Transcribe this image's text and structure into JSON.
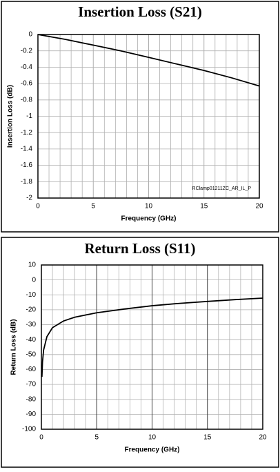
{
  "chart_data": [
    {
      "type": "line",
      "title": "Insertion Loss (S21)",
      "x_label": "Frequency (GHz)",
      "y_label": "Insertion Loss (dB)",
      "annotation": "RClamp01211ZC_AR_IL_P",
      "xlim": [
        0,
        20
      ],
      "ylim": [
        -2,
        0
      ],
      "xticks": [
        0,
        5,
        10,
        15,
        20
      ],
      "xminorticks": [
        1,
        2,
        3,
        4,
        6,
        7,
        8,
        9,
        11,
        12,
        13,
        14,
        16,
        17,
        18,
        19
      ],
      "yticks": [
        0,
        -0.2,
        -0.4,
        -0.6,
        -0.8,
        -1,
        -1.2,
        -1.4,
        -1.6,
        -1.8,
        -2
      ],
      "grid": true,
      "grid_color": "#b0b0b0",
      "major_grid_color": "#b0b0b0",
      "x": [
        0,
        2.5,
        5,
        7.5,
        10,
        12.5,
        15,
        17.5,
        20
      ],
      "series": [
        {
          "color": "#000000",
          "values": [
            0,
            -0.06,
            -0.13,
            -0.2,
            -0.28,
            -0.36,
            -0.44,
            -0.53,
            -0.63
          ]
        }
      ]
    },
    {
      "type": "line",
      "title": "Return Loss (S11)",
      "x_label": "Frequency (GHz)",
      "y_label": "Return Loss (dB)",
      "xlim": [
        0,
        20
      ],
      "ylim": [
        -100,
        10
      ],
      "xticks": [
        0,
        5,
        10,
        15,
        20
      ],
      "xminorticks": [
        1,
        2,
        3,
        4,
        6,
        7,
        8,
        9,
        11,
        12,
        13,
        14,
        16,
        17,
        18,
        19
      ],
      "yticks": [
        10,
        0,
        -10,
        -20,
        -30,
        -40,
        -50,
        -60,
        -70,
        -80,
        -90,
        -100
      ],
      "grid": true,
      "grid_color": "#b0b0b0",
      "major_grid_color": "#333333",
      "x": [
        0.05,
        0.1,
        0.2,
        0.5,
        1,
        2,
        3,
        5,
        7.5,
        10,
        12.5,
        15,
        17.5,
        20
      ],
      "series": [
        {
          "color": "#000000",
          "values": [
            -65,
            -55,
            -47,
            -38,
            -32,
            -27.5,
            -25,
            -22,
            -19.5,
            -17.3,
            -15.7,
            -14.4,
            -13.2,
            -12.2
          ]
        }
      ]
    }
  ]
}
